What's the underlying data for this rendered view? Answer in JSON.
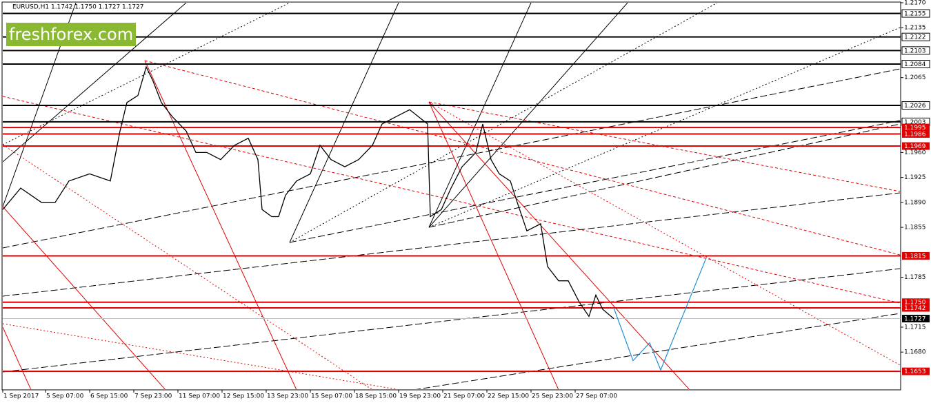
{
  "chart_data": {
    "type": "line",
    "title": "EURUSD,H1  1.1742 1.1750 1.1727 1.1727",
    "watermark": "freshforex.com",
    "x": [
      0,
      13,
      28,
      38,
      48,
      63,
      78,
      85,
      90,
      98,
      104,
      109,
      115,
      123,
      133,
      140,
      148,
      158,
      168,
      178,
      185,
      188,
      195,
      200,
      205,
      213,
      223,
      230,
      238,
      248,
      258,
      268,
      275,
      285,
      295,
      308,
      310,
      318,
      325,
      333,
      343,
      348,
      354,
      360,
      368,
      373,
      380,
      390,
      395,
      403,
      410,
      418,
      425,
      430,
      435,
      443
    ],
    "values": [
      1.188,
      1.191,
      1.189,
      1.189,
      1.192,
      1.193,
      1.192,
      1.199,
      1.203,
      1.204,
      1.208,
      1.206,
      1.203,
      1.201,
      1.199,
      1.196,
      1.196,
      1.195,
      1.197,
      1.198,
      1.195,
      1.188,
      1.187,
      1.187,
      1.19,
      1.192,
      1.193,
      1.197,
      1.195,
      1.194,
      1.195,
      1.197,
      1.2,
      1.201,
      1.202,
      1.2,
      1.187,
      1.188,
      1.191,
      1.194,
      1.196,
      1.2,
      1.195,
      1.193,
      1.192,
      1.189,
      1.185,
      1.186,
      1.18,
      1.178,
      1.178,
      1.175,
      1.173,
      1.176,
      1.174,
      1.1727
    ],
    "color": "#000000",
    "forecast": {
      "x": [
        443,
        457,
        469,
        477,
        510
      ],
      "values": [
        1.1742,
        1.1668,
        1.1693,
        1.1655,
        1.1812
      ],
      "color": "#1e8fd8"
    },
    "xlim": [
      0,
      650
    ],
    "xticks": [
      {
        "value": 0,
        "label": "1 Sep 2017"
      },
      {
        "value": 31,
        "label": "5 Sep 07:00"
      },
      {
        "value": 63,
        "label": "6 Sep 15:00"
      },
      {
        "value": 95,
        "label": "7 Sep 23:00"
      },
      {
        "value": 127,
        "label": "11 Sep 07:00"
      },
      {
        "value": 159,
        "label": "12 Sep 15:00"
      },
      {
        "value": 191,
        "label": "13 Sep 23:00"
      },
      {
        "value": 223,
        "label": "15 Sep 07:00"
      },
      {
        "value": 255,
        "label": "18 Sep 15:00"
      },
      {
        "value": 287,
        "label": "19 Sep 23:00"
      },
      {
        "value": 319,
        "label": "21 Sep 07:00"
      },
      {
        "value": 351,
        "label": "22 Sep 15:00"
      },
      {
        "value": 383,
        "label": "25 Sep 23:00"
      },
      {
        "value": 415,
        "label": "27 Sep 07:00"
      }
    ],
    "ylim": [
      1.1643,
      1.217
    ],
    "yticks": [
      {
        "value": 1.217,
        "label": "1.2170"
      },
      {
        "value": 1.2135,
        "label": "1.2135"
      },
      {
        "value": 1.2065,
        "label": "1.2065"
      },
      {
        "value": 1.196,
        "label": "1.1960"
      },
      {
        "value": 1.1925,
        "label": "1.1925"
      },
      {
        "value": 1.189,
        "label": "1.1890"
      },
      {
        "value": 1.1855,
        "label": "1.1855"
      },
      {
        "value": 1.1785,
        "label": "1.1785"
      },
      {
        "value": 1.1715,
        "label": "1.1715"
      },
      {
        "value": 1.168,
        "label": "1.1680"
      }
    ],
    "levels": [
      {
        "value": 1.2155,
        "label": "1.2155",
        "color": "#000000"
      },
      {
        "value": 1.2122,
        "label": "1.2122",
        "color": "#000000"
      },
      {
        "value": 1.2103,
        "label": "1.2103",
        "color": "#000000"
      },
      {
        "value": 1.2084,
        "label": "1.2084",
        "color": "#000000"
      },
      {
        "value": 1.2026,
        "label": "1.2026",
        "color": "#000000"
      },
      {
        "value": 1.2003,
        "label": "1.2003",
        "color": "#000000"
      },
      {
        "value": 1.1995,
        "label": "1.1995",
        "color": "#e00000"
      },
      {
        "value": 1.1986,
        "label": "1.1986",
        "color": "#e00000"
      },
      {
        "value": 1.1969,
        "label": "1.1969",
        "color": "#e00000"
      },
      {
        "value": 1.1815,
        "label": "1.1815",
        "color": "#e00000"
      },
      {
        "value": 1.175,
        "label": "1.1750",
        "color": "#e00000"
      },
      {
        "value": 1.1742,
        "label": "1.1742",
        "color": "#e00000"
      },
      {
        "value": 1.1727,
        "label": "1.1727",
        "color": "#c0c0c0"
      },
      {
        "value": 1.1653,
        "label": "1.1653",
        "color": "#e00000"
      }
    ]
  }
}
